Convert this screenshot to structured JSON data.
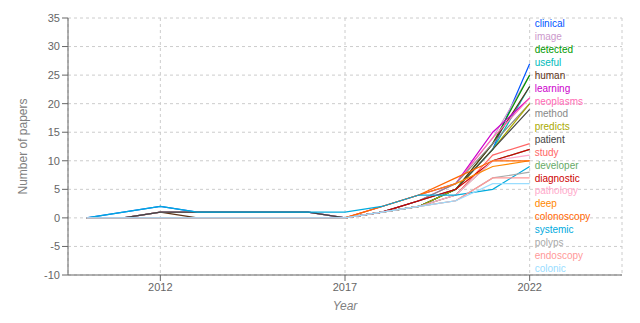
{
  "chart_data": {
    "type": "line",
    "x": [
      2010,
      2011,
      2012,
      2013,
      2014,
      2015,
      2016,
      2017,
      2018,
      2019,
      2020,
      2021,
      2022
    ],
    "series": [
      {
        "name": "clinical",
        "color": "#0055FF",
        "values": [
          0,
          1,
          2,
          1,
          1,
          1,
          1,
          0,
          1,
          2,
          5,
          12,
          27
        ]
      },
      {
        "name": "image",
        "color": "#CC99CC",
        "values": [
          0,
          0,
          1,
          1,
          1,
          1,
          1,
          0,
          1,
          3,
          6,
          14,
          25
        ]
      },
      {
        "name": "detected",
        "color": "#009900",
        "values": [
          0,
          0,
          0,
          0,
          0,
          0,
          0,
          0,
          1,
          2,
          5,
          13,
          25
        ]
      },
      {
        "name": "useful",
        "color": "#00BBBB",
        "values": [
          0,
          0,
          0,
          0,
          0,
          0,
          0,
          0,
          1,
          2,
          5,
          12,
          23
        ]
      },
      {
        "name": "human",
        "color": "#5C3317",
        "values": [
          0,
          0,
          1,
          0,
          0,
          0,
          0,
          0,
          1,
          2,
          5,
          13,
          23
        ]
      },
      {
        "name": "learning",
        "color": "#CC00CC",
        "values": [
          0,
          0,
          0,
          0,
          0,
          0,
          0,
          0,
          2,
          4,
          6,
          15,
          21
        ]
      },
      {
        "name": "neoplasms",
        "color": "#FF69B4",
        "values": [
          0,
          0,
          1,
          1,
          1,
          1,
          1,
          0,
          1,
          3,
          6,
          14,
          21
        ]
      },
      {
        "name": "method",
        "color": "#888888",
        "values": [
          0,
          0,
          1,
          1,
          1,
          1,
          1,
          0,
          1,
          3,
          6,
          13,
          20
        ]
      },
      {
        "name": "predicts",
        "color": "#AAAA00",
        "values": [
          0,
          0,
          0,
          0,
          0,
          0,
          0,
          0,
          1,
          2,
          5,
          12,
          20
        ]
      },
      {
        "name": "patient",
        "color": "#444444",
        "values": [
          0,
          0,
          1,
          1,
          1,
          1,
          1,
          0,
          1,
          3,
          5,
          12,
          19
        ]
      },
      {
        "name": "study",
        "color": "#FF6666",
        "values": [
          0,
          0,
          0,
          0,
          0,
          0,
          0,
          0,
          1,
          2,
          4,
          11,
          13
        ]
      },
      {
        "name": "developer",
        "color": "#66AA66",
        "values": [
          0,
          0,
          0,
          0,
          0,
          0,
          0,
          0,
          1,
          2,
          4,
          10,
          12
        ]
      },
      {
        "name": "diagnostic",
        "color": "#CC0000",
        "values": [
          0,
          0,
          0,
          0,
          0,
          0,
          0,
          0,
          1,
          3,
          5,
          10,
          12
        ]
      },
      {
        "name": "pathology",
        "color": "#FFAACC",
        "values": [
          0,
          0,
          0,
          0,
          0,
          0,
          0,
          0,
          1,
          2,
          4,
          10,
          11
        ]
      },
      {
        "name": "deep",
        "color": "#FF8800",
        "values": [
          0,
          0,
          0,
          0,
          0,
          0,
          0,
          0,
          2,
          4,
          6,
          9,
          10
        ]
      },
      {
        "name": "colonoscopy",
        "color": "#FF6600",
        "values": [
          0,
          0,
          0,
          0,
          0,
          0,
          0,
          0,
          2,
          4,
          7,
          10,
          10
        ]
      },
      {
        "name": "systemic",
        "color": "#00AADD",
        "values": [
          0,
          1,
          2,
          1,
          1,
          1,
          1,
          1,
          2,
          4,
          4,
          5,
          9
        ]
      },
      {
        "name": "polyps",
        "color": "#AAAAAA",
        "values": [
          0,
          0,
          0,
          0,
          0,
          0,
          0,
          0,
          1,
          2,
          3,
          7,
          8
        ]
      },
      {
        "name": "endoscopy",
        "color": "#FF9999",
        "values": [
          0,
          0,
          0,
          0,
          0,
          0,
          0,
          0,
          1,
          2,
          3,
          7,
          7
        ]
      },
      {
        "name": "colonic",
        "color": "#99DDFF",
        "values": [
          0,
          0,
          0,
          0,
          0,
          0,
          0,
          0,
          1,
          2,
          3,
          6,
          6
        ]
      }
    ],
    "xlabel": "Year",
    "ylabel": "Number of papers",
    "xlim": [
      2009.5,
      2024.5
    ],
    "ylim": [
      -10,
      35
    ],
    "xticks": [
      2012,
      2017,
      2022
    ],
    "yticks": [
      -10,
      -5,
      0,
      5,
      10,
      15,
      20,
      25,
      30,
      35
    ],
    "grid": true
  }
}
